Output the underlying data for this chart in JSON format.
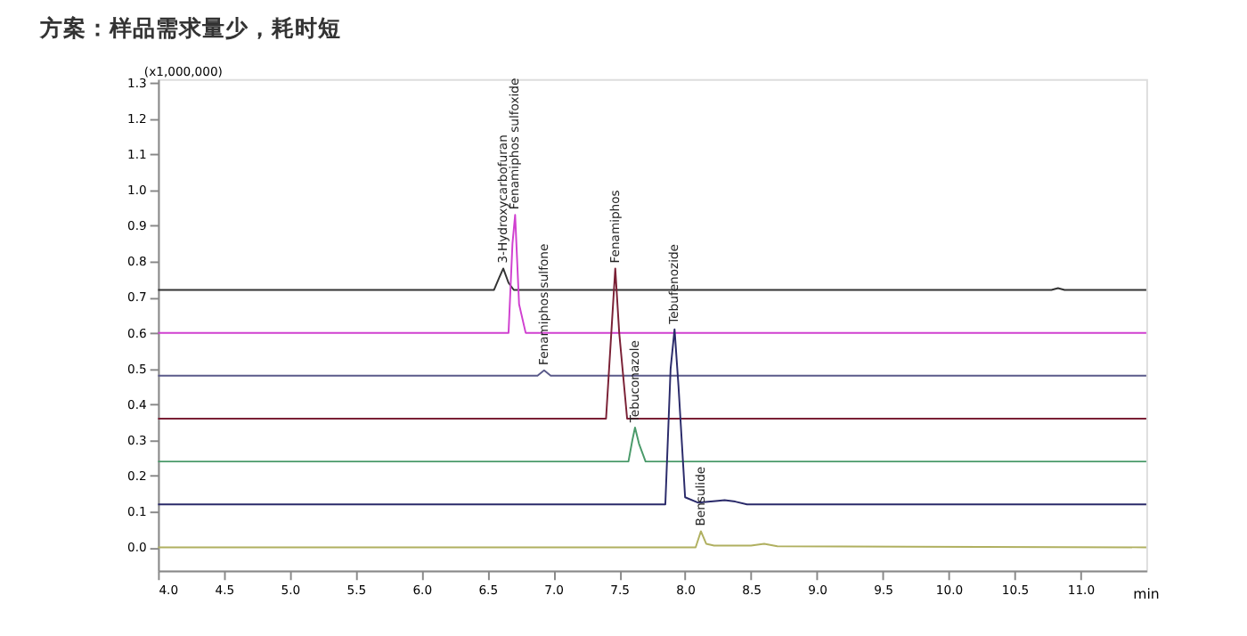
{
  "chart_data": {
    "type": "line",
    "title": "方案：样品需求量少，耗时短",
    "ylabel": "(x1,000,000)",
    "xlabel": "min",
    "xlim": [
      4.0,
      11.5
    ],
    "xticks": [
      {
        "value": 4,
        "label": "4.0"
      },
      4.5,
      {
        "value": 5,
        "label": "5.0"
      },
      5.5,
      {
        "value": 6,
        "label": "6.0"
      },
      6.5,
      {
        "value": 7,
        "label": "7.0"
      },
      7.5,
      {
        "value": 8,
        "label": "8.0"
      },
      8.5,
      {
        "value": 9,
        "label": "9.0"
      },
      9.5,
      {
        "value": 10,
        "label": "10.0"
      },
      10.5,
      {
        "value": 11,
        "label": "11.0"
      }
    ],
    "ylim": [
      -0.065,
      1.31
    ],
    "yticks": [
      {
        "value": 0,
        "label": "0.0"
      },
      0.1,
      0.2,
      0.3,
      0.4,
      0.5,
      0.6,
      0.7,
      0.8,
      0.9,
      {
        "value": 1,
        "label": "1.0"
      },
      1.1,
      1.2,
      1.3
    ],
    "grid": false,
    "legend": false,
    "marker": "none",
    "line_style": "solid",
    "series": [
      {
        "color": "#333333",
        "x": [
          4.0,
          6.55,
          6.59,
          6.62,
          6.66,
          6.7,
          10.78,
          10.83,
          10.88,
          11.5
        ],
        "values": [
          0.72,
          0.72,
          0.755,
          0.78,
          0.74,
          0.72,
          0.72,
          0.725,
          0.72,
          0.72
        ]
      },
      {
        "color": "#d040d0",
        "x": [
          4.0,
          6.66,
          6.69,
          6.71,
          6.74,
          6.79,
          11.5
        ],
        "values": [
          0.6,
          0.6,
          0.85,
          0.93,
          0.68,
          0.6,
          0.6
        ]
      },
      {
        "color": "#5a5a8a",
        "x": [
          4.0,
          6.88,
          6.93,
          6.98,
          11.5
        ],
        "values": [
          0.48,
          0.48,
          0.495,
          0.48,
          0.48
        ]
      },
      {
        "color": "#7a2035",
        "x": [
          4.0,
          7.4,
          7.44,
          7.47,
          7.5,
          7.56,
          11.5
        ],
        "values": [
          0.36,
          0.36,
          0.6,
          0.78,
          0.6,
          0.36,
          0.36
        ]
      },
      {
        "color": "#4a9a6a",
        "x": [
          4.0,
          7.57,
          7.6,
          7.62,
          7.65,
          7.7,
          11.5
        ],
        "values": [
          0.24,
          0.24,
          0.3,
          0.335,
          0.29,
          0.24,
          0.24
        ]
      },
      {
        "color": "#2a2a6a",
        "x": [
          4.0,
          7.85,
          7.89,
          7.92,
          7.95,
          8.0,
          8.1,
          8.25,
          8.3,
          8.38,
          8.47,
          11.5
        ],
        "values": [
          0.12,
          0.12,
          0.5,
          0.61,
          0.45,
          0.14,
          0.125,
          0.13,
          0.132,
          0.128,
          0.12,
          0.12
        ]
      },
      {
        "color": "#b0b060",
        "x": [
          4.0,
          8.08,
          8.12,
          8.16,
          8.22,
          8.5,
          8.6,
          8.7,
          11.5
        ],
        "values": [
          0.0,
          0.0,
          0.045,
          0.01,
          0.005,
          0.005,
          0.01,
          0.003,
          0.0
        ]
      }
    ],
    "annotations": [
      {
        "text": "3-Hydroxycarbofuran",
        "x": 6.62,
        "y": 0.78
      },
      {
        "text": "Fenamiphos sulfoxide",
        "x": 6.71,
        "y": 0.93
      },
      {
        "text": "Fenamiphos sulfone",
        "x": 6.93,
        "y": 0.495
      },
      {
        "text": "Fenamiphos",
        "x": 7.47,
        "y": 0.78
      },
      {
        "text": "Tebuconazole",
        "x": 7.62,
        "y": 0.335
      },
      {
        "text": "Tebufenozide",
        "x": 7.92,
        "y": 0.61
      },
      {
        "text": "Bensulide",
        "x": 8.12,
        "y": 0.045
      }
    ]
  }
}
